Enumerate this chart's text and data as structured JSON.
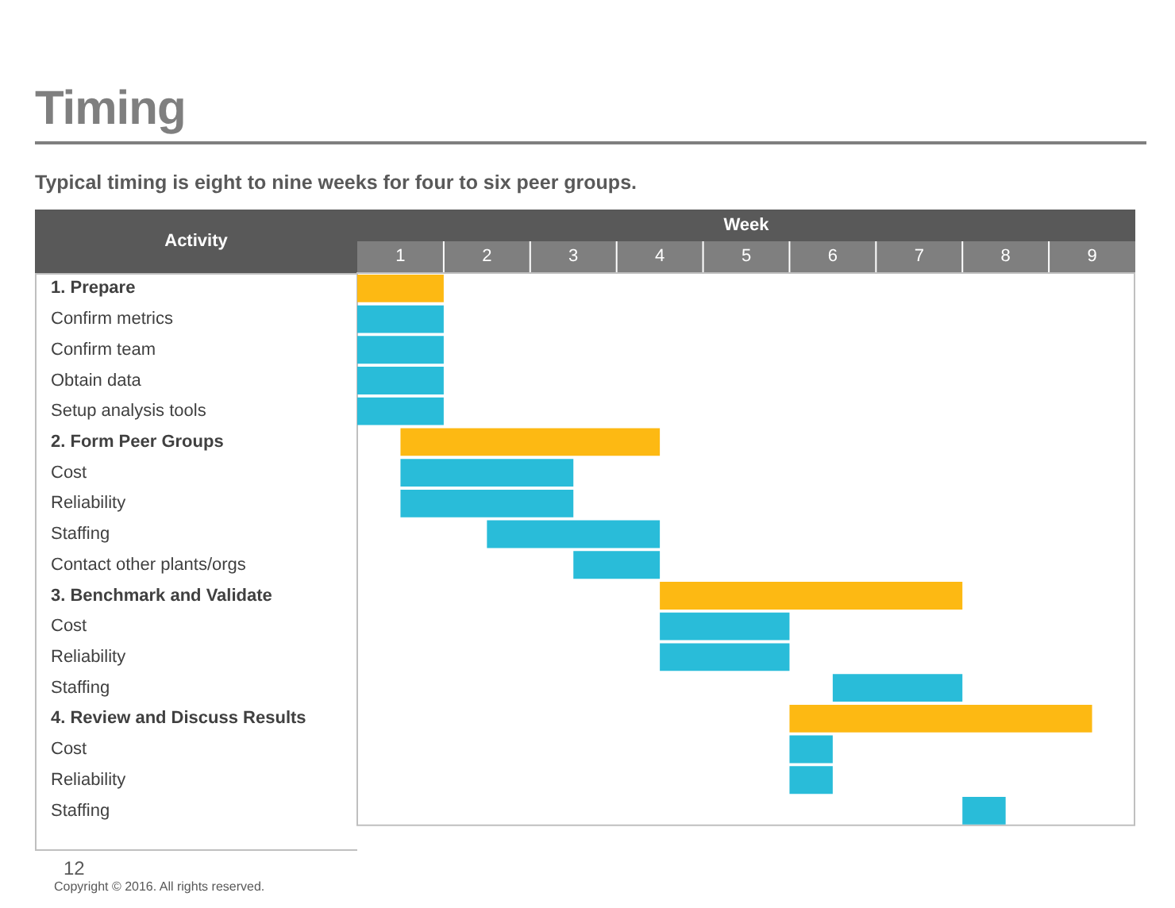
{
  "chart_data": {
    "type": "bar",
    "orientation": "horizontal",
    "title": "Timing",
    "subtitle": "Typical timing is eight to nine weeks for four to six peer groups.",
    "xlabel": "Week",
    "ylabel": "Activity",
    "categories": [
      "1. Prepare",
      "Confirm metrics",
      "Confirm team",
      "Obtain data",
      "Setup analysis tools",
      "2. Form Peer Groups",
      "Cost",
      "Reliability",
      "Staffing",
      "Contact other plants/orgs",
      "3. Benchmark and Validate",
      "Cost",
      "Reliability",
      "Staffing",
      "4. Review and Discuss Results",
      "Cost",
      "Reliability",
      "Staffing"
    ],
    "base": [
      0,
      0,
      0,
      0,
      0,
      0.5,
      0.5,
      0.5,
      1.5,
      2.5,
      3.5,
      3.5,
      3.5,
      5.5,
      5,
      5,
      5,
      7
    ],
    "values": [
      1,
      1,
      1,
      1,
      1,
      3,
      2,
      2,
      2,
      1,
      3.5,
      1.5,
      1.5,
      1.5,
      3.5,
      0.5,
      0.5,
      0.5
    ],
    "colors": [
      "#fdb913",
      "#29bcd9",
      "#29bcd9",
      "#29bcd9",
      "#29bcd9",
      "#fdb913",
      "#29bcd9",
      "#29bcd9",
      "#29bcd9",
      "#29bcd9",
      "#fdb913",
      "#29bcd9",
      "#29bcd9",
      "#29bcd9",
      "#fdb913",
      "#29bcd9",
      "#29bcd9",
      "#29bcd9"
    ],
    "xlim": [
      0,
      9
    ],
    "xticks": [
      {
        "value": 0.5,
        "label": "1"
      },
      {
        "value": 1.5,
        "label": "2"
      },
      {
        "value": 2.5,
        "label": "3"
      },
      {
        "value": 3.5,
        "label": "4"
      },
      {
        "value": 4.5,
        "label": "5"
      },
      {
        "value": 5.5,
        "label": "6"
      },
      {
        "value": 6.5,
        "label": "7"
      },
      {
        "value": 7.5,
        "label": "8"
      },
      {
        "value": 8.5,
        "label": "9"
      }
    ],
    "grid": false,
    "legend": false,
    "annotations": [
      "12",
      "Copyright © 2016. All rights reserved."
    ]
  }
}
